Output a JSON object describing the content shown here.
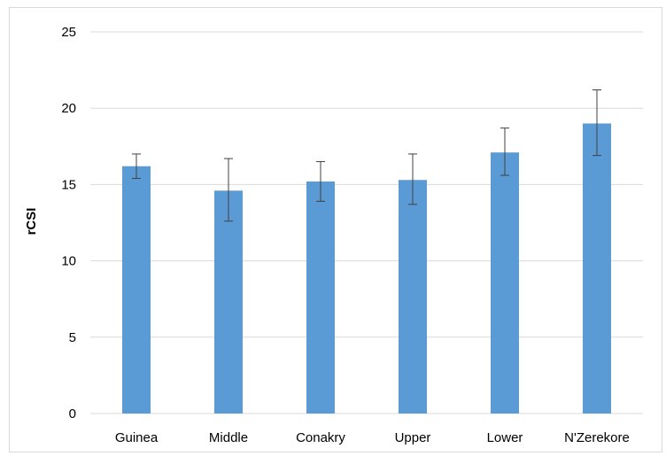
{
  "chart_data": {
    "type": "bar",
    "title": "",
    "xlabel": "",
    "ylabel": "rCSI",
    "categories": [
      "Guinea",
      "Middle",
      "Conakry",
      "Upper",
      "Lower",
      "N'Zerekore"
    ],
    "values": [
      16.2,
      14.6,
      15.2,
      15.3,
      17.1,
      19.0
    ],
    "error_low": [
      15.4,
      12.6,
      13.9,
      13.7,
      15.6,
      16.9
    ],
    "error_high": [
      17.0,
      16.7,
      16.5,
      17.0,
      18.7,
      21.2
    ],
    "ylim": [
      0,
      25
    ],
    "yticks": [
      0,
      5,
      10,
      15,
      20,
      25
    ],
    "grid": true,
    "legend": "none",
    "colors": {
      "bar": "#5b9bd5",
      "grid": "#d9d9d9",
      "error_bar": "#404040",
      "text": "#000000",
      "frame": "#d9d9d9"
    }
  }
}
